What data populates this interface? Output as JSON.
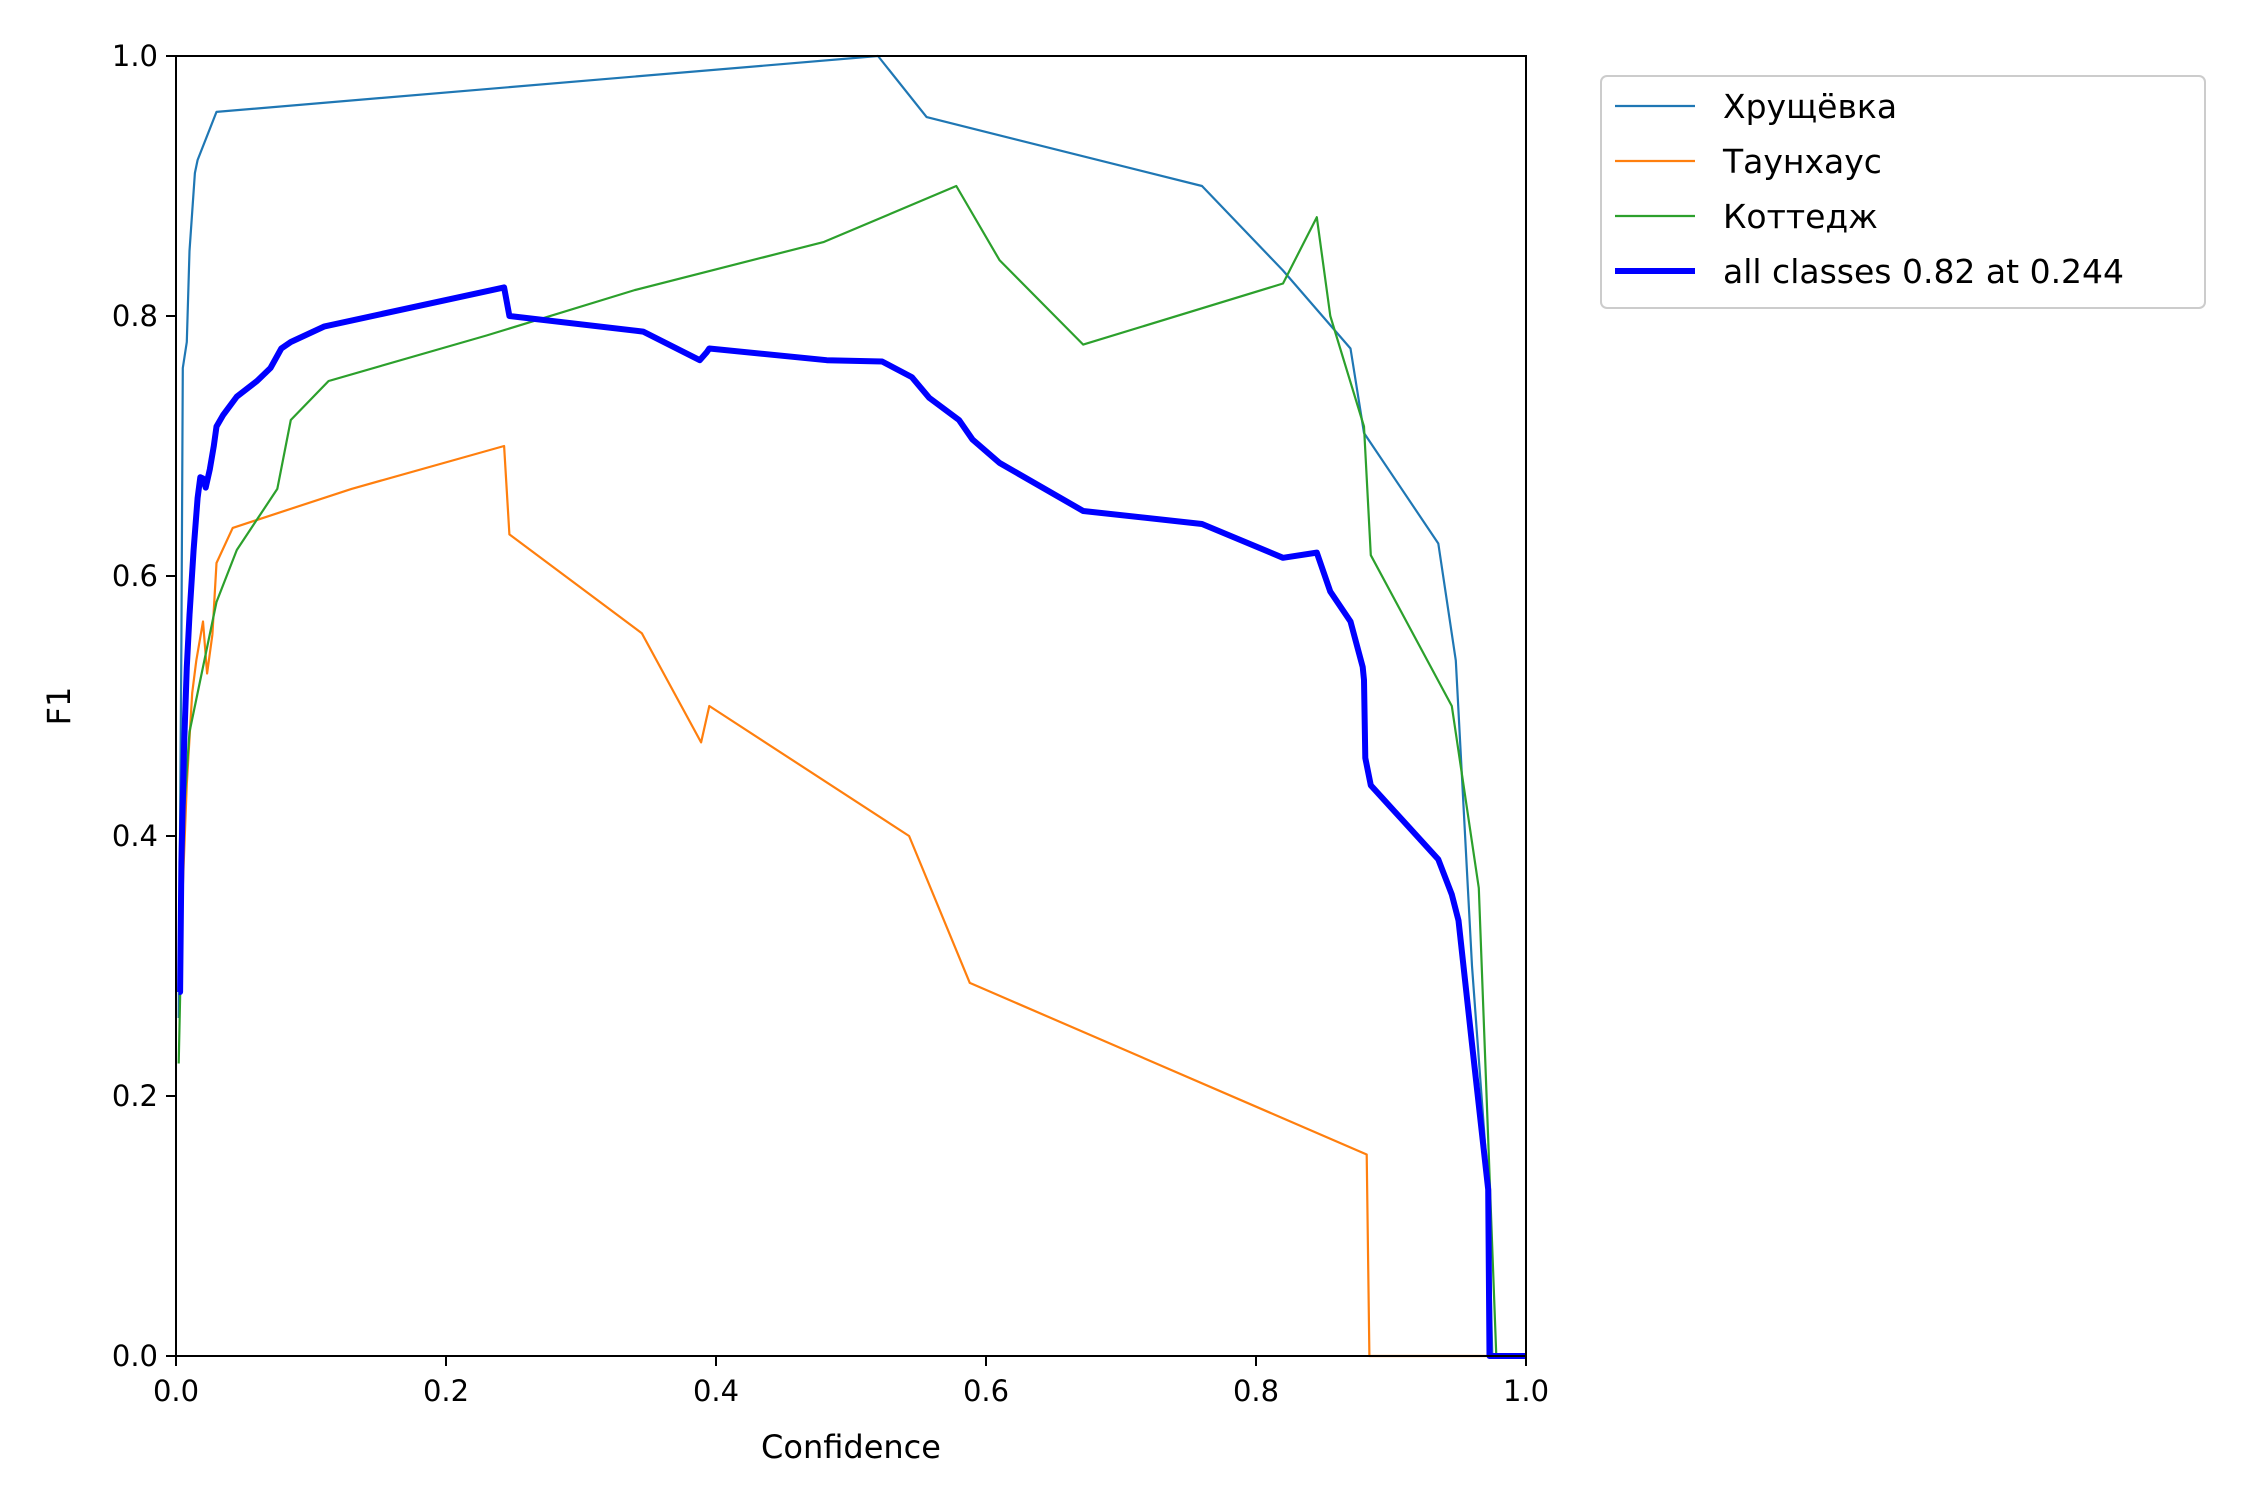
{
  "chart_data": {
    "type": "line",
    "title": "",
    "xlabel": "Confidence",
    "ylabel": "F1",
    "xlim": [
      0,
      1
    ],
    "ylim": [
      0,
      1
    ],
    "xticks": [
      "0.0",
      "0.2",
      "0.4",
      "0.6",
      "0.8",
      "1.0"
    ],
    "yticks": [
      "0.0",
      "0.2",
      "0.4",
      "0.6",
      "0.8",
      "1.0"
    ],
    "grid": false,
    "legend_position": "outside-top-right",
    "series": [
      {
        "name": "Хрущёвка",
        "color": "#1f77b4",
        "width": 2.2,
        "x": [
          0.002,
          0.004,
          0.005,
          0.008,
          0.01,
          0.012,
          0.014,
          0.016,
          0.03,
          0.52,
          0.556,
          0.76,
          0.82,
          0.87,
          0.88,
          0.935,
          0.948,
          0.96,
          0.972,
          0.975,
          1.0
        ],
        "y": [
          0.26,
          0.55,
          0.76,
          0.78,
          0.85,
          0.88,
          0.91,
          0.92,
          0.957,
          1.0,
          0.953,
          0.9,
          0.835,
          0.775,
          0.71,
          0.625,
          0.535,
          0.3,
          0.13,
          0.0,
          0.0
        ]
      },
      {
        "name": "Таунхаус",
        "color": "#ff7f0e",
        "width": 2.2,
        "x": [
          0.002,
          0.008,
          0.012,
          0.015,
          0.02,
          0.023,
          0.027,
          0.03,
          0.042,
          0.13,
          0.243,
          0.247,
          0.345,
          0.389,
          0.395,
          0.543,
          0.588,
          0.882,
          0.884,
          0.975,
          1.0
        ],
        "y": [
          0.28,
          0.44,
          0.51,
          0.535,
          0.565,
          0.525,
          0.555,
          0.61,
          0.637,
          0.667,
          0.7,
          0.632,
          0.556,
          0.472,
          0.5,
          0.4,
          0.287,
          0.155,
          0.0,
          0.0,
          0.0
        ]
      },
      {
        "name": "Коттедж",
        "color": "#2ca02c",
        "width": 2.2,
        "x": [
          0.002,
          0.006,
          0.01,
          0.02,
          0.03,
          0.045,
          0.075,
          0.085,
          0.113,
          0.23,
          0.34,
          0.48,
          0.578,
          0.61,
          0.672,
          0.82,
          0.845,
          0.855,
          0.88,
          0.885,
          0.945,
          0.965,
          0.978,
          1.0
        ],
        "y": [
          0.225,
          0.42,
          0.48,
          0.53,
          0.58,
          0.62,
          0.667,
          0.72,
          0.75,
          0.785,
          0.82,
          0.857,
          0.9,
          0.843,
          0.778,
          0.825,
          0.876,
          0.8,
          0.715,
          0.616,
          0.5,
          0.36,
          0.0,
          0.0
        ]
      },
      {
        "name": "all classes 0.82 at 0.244",
        "color": "#0000ff",
        "width": 6,
        "x": [
          0.002,
          0.003,
          0.004,
          0.006,
          0.008,
          0.01,
          0.013,
          0.016,
          0.018,
          0.02,
          0.022,
          0.025,
          0.028,
          0.03,
          0.035,
          0.045,
          0.06,
          0.07,
          0.078,
          0.085,
          0.11,
          0.243,
          0.247,
          0.346,
          0.388,
          0.393,
          0.395,
          0.482,
          0.523,
          0.545,
          0.558,
          0.58,
          0.59,
          0.61,
          0.672,
          0.76,
          0.82,
          0.845,
          0.855,
          0.87,
          0.879,
          0.88,
          0.881,
          0.885,
          0.935,
          0.945,
          0.95,
          0.96,
          0.972,
          0.973,
          0.975,
          1.0
        ],
        "y": [
          0.28,
          0.28,
          0.38,
          0.47,
          0.53,
          0.57,
          0.62,
          0.66,
          0.676,
          0.675,
          0.668,
          0.682,
          0.7,
          0.715,
          0.724,
          0.738,
          0.75,
          0.76,
          0.775,
          0.78,
          0.792,
          0.822,
          0.8,
          0.788,
          0.766,
          0.772,
          0.775,
          0.766,
          0.765,
          0.753,
          0.737,
          0.72,
          0.705,
          0.687,
          0.65,
          0.64,
          0.614,
          0.618,
          0.588,
          0.565,
          0.53,
          0.52,
          0.46,
          0.439,
          0.382,
          0.355,
          0.335,
          0.24,
          0.128,
          0.0,
          0.0,
          0.0
        ]
      }
    ]
  }
}
